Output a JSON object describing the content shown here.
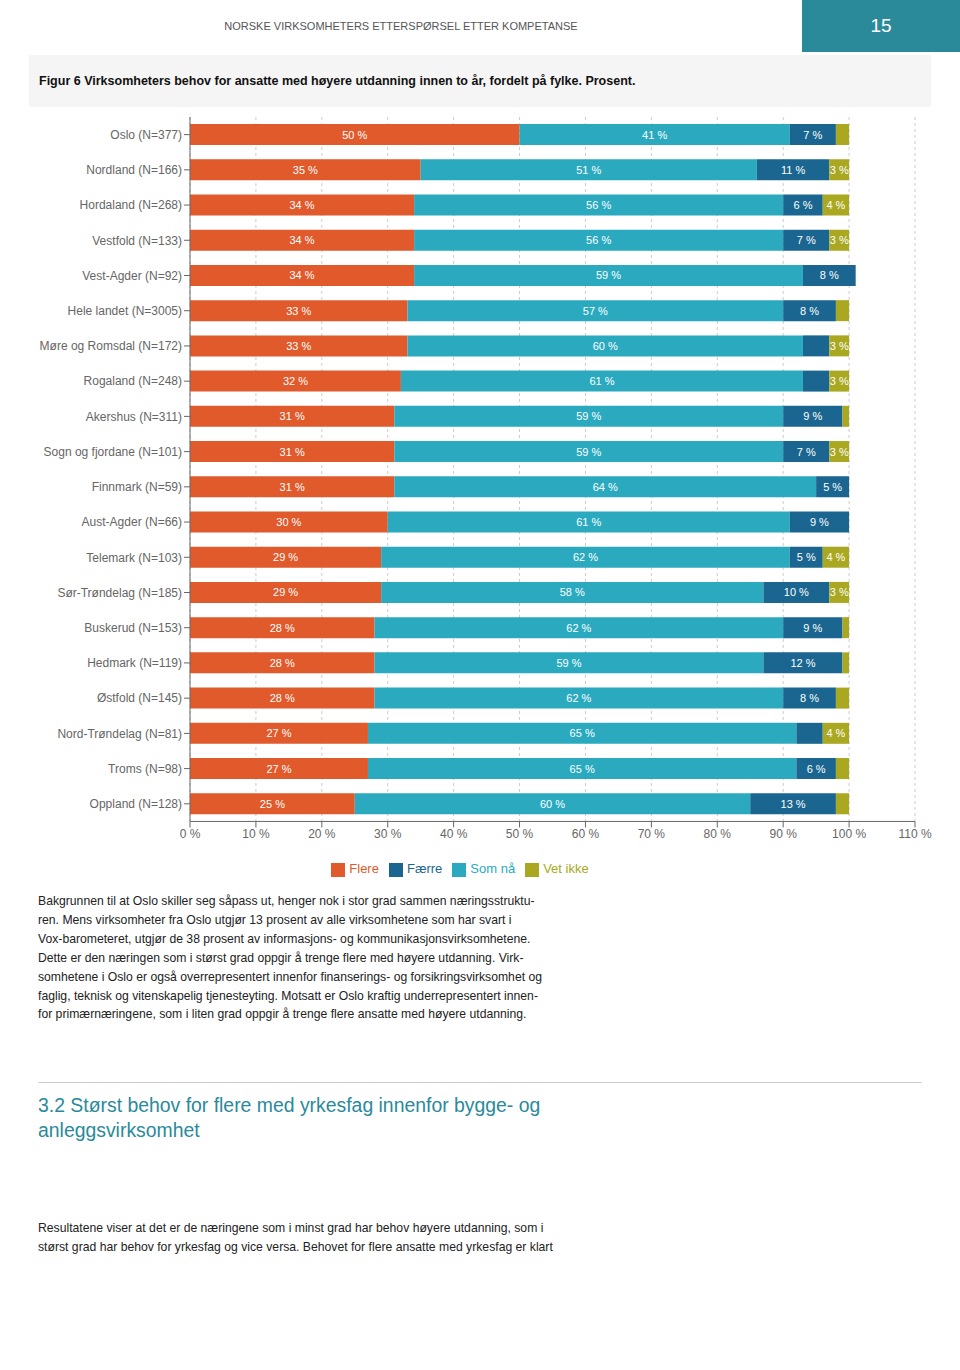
{
  "chart_data": {
    "type": "bar",
    "title": "Figur 6 Virksomheters behov for ansatte med høyere utdanning innen to år, fordelt på fylke. Prosent.",
    "orientation": "horizontal",
    "stacked": true,
    "data_labels": true,
    "grid": true,
    "legend": "bottom",
    "categories": [
      "Oslo (N=377)",
      "Nordland (N=166)",
      "Hordaland (N=268)",
      "Vestfold (N=133)",
      "Vest-Agder (N=92)",
      "Hele landet (N=3005)",
      "Møre og Romsdal (N=172)",
      "Rogaland (N=248)",
      "Akershus (N=311)",
      "Sogn og fjordane (N=101)",
      "Finnmark (N=59)",
      "Aust-Agder (N=66)",
      "Telemark (N=103)",
      "Sør-Trøndelag (N=185)",
      "Buskerud (N=153)",
      "Hedmark (N=119)",
      "Østfold (N=145)",
      "Nord-Trøndelag (N=81)",
      "Troms (N=98)",
      "Oppland (N=128)"
    ],
    "series": [
      {
        "name": "Flere",
        "color": "#e05a2b",
        "values": [
          50,
          35,
          34,
          34,
          34,
          33,
          33,
          32,
          31,
          31,
          31,
          30,
          29,
          29,
          28,
          28,
          28,
          27,
          27,
          25
        ],
        "value_labels": [
          "50 %",
          "35 %",
          "34 %",
          "34 %",
          "34 %",
          "33 %",
          "33 %",
          "32 %",
          "31 %",
          "31 %",
          "31 %",
          "30 %",
          "29 %",
          "29 %",
          "28 %",
          "28 %",
          "28 %",
          "27 %",
          "27 %",
          "25 %"
        ]
      },
      {
        "name": "Som nå",
        "color": "#2baabf",
        "values": [
          41,
          51,
          56,
          56,
          59,
          57,
          60,
          61,
          59,
          59,
          64,
          61,
          62,
          58,
          62,
          59,
          62,
          65,
          65,
          60
        ],
        "value_labels": [
          "41 %",
          "51 %",
          "56 %",
          "56 %",
          "59 %",
          "57 %",
          "60 %",
          "61 %",
          "59 %",
          "59 %",
          "64 %",
          "61 %",
          "62 %",
          "58 %",
          "62 %",
          "59 %",
          "62 %",
          "65 %",
          "65 %",
          "60 %"
        ]
      },
      {
        "name": "Færre",
        "color": "#1a6690",
        "values": [
          7,
          11,
          6,
          7,
          8,
          8,
          4,
          4,
          9,
          7,
          5,
          9,
          5,
          10,
          9,
          12,
          8,
          4,
          6,
          13
        ],
        "value_labels": [
          "7 %",
          "11 %",
          "6 %",
          "7 %",
          "8 %",
          "8 %",
          null,
          null,
          "9 %",
          "7 %",
          "5 %",
          "9 %",
          "5 %",
          "10 %",
          "9 %",
          "12 %",
          "8 %",
          null,
          "6 %",
          "13 %"
        ]
      },
      {
        "name": "Vet ikke",
        "color": "#a9a820",
        "values": [
          2,
          3,
          4,
          3,
          0,
          2,
          3,
          3,
          1,
          3,
          0,
          0,
          4,
          3,
          1,
          1,
          2,
          4,
          2,
          2
        ],
        "value_labels": [
          null,
          "3 %",
          "4 %",
          "3 %",
          null,
          null,
          "3 %",
          "3 %",
          null,
          "3 %",
          null,
          null,
          "4 %",
          "3 %",
          null,
          null,
          null,
          "4 %",
          null,
          null
        ]
      }
    ],
    "xlim": [
      0,
      110
    ],
    "xticks": [
      {
        "value": 0,
        "label": "0 %"
      },
      {
        "value": 10,
        "label": "10 %"
      },
      {
        "value": 20,
        "label": "20 %"
      },
      {
        "value": 30,
        "label": "30 %"
      },
      {
        "value": 40,
        "label": "40 %"
      },
      {
        "value": 50,
        "label": "50 %"
      },
      {
        "value": 60,
        "label": "60 %"
      },
      {
        "value": 70,
        "label": "70 %"
      },
      {
        "value": 80,
        "label": "80 %"
      },
      {
        "value": 90,
        "label": "90 %"
      },
      {
        "value": 100,
        "label": "100 %"
      },
      {
        "value": 110,
        "label": "110 %"
      }
    ]
  },
  "page": {
    "header": "NORSKE VIRKSOMHETERS ETTERSPØRSEL ETTER KOMPETANSE",
    "page_number": "15",
    "body_text": [
      "Bakgrunnen til at Oslo skiller seg såpass ut, henger nok i stor grad sammen næringsstruktu-",
      "ren. Mens virksomheter fra Oslo utgjør 13 prosent av alle virksomhetene som har svart i",
      "Vox-barometeret, utgjør de 38 prosent av informasjons- og kommunikasjonsvirksomhetene.",
      "Dette er den næringen som i størst grad oppgir å trenge flere med høyere utdanning. Virk-",
      "somhetene i Oslo er også overrepresentert innenfor finanserings- og forsikringsvirksomhet og",
      "faglig, teknisk og vitenskapelig tjenesteyting. Motsatt er Oslo kraftig underrepresentert innen-",
      "for primærnæringene, som i liten grad oppgir å trenge flere ansatte med høyere utdanning."
    ],
    "section_title": [
      "3.2  Størst behov for flere med yrkesfag innenfor bygge- og",
      "anleggsvirksomhet"
    ],
    "footer_text": [
      "Resultatene viser at det er de næringene som i minst grad har behov høyere utdanning, som i",
      "størst grad har behov for yrkesfag og vice versa. Behovet for flere ansatte med yrkesfag er klart"
    ]
  }
}
